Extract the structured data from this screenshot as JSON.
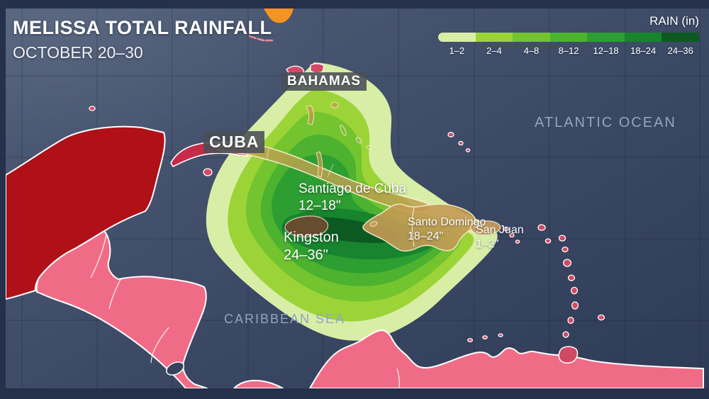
{
  "header": {
    "title": "MELISSA TOTAL RAINFALL",
    "subtitle": "OCTOBER 20–30"
  },
  "legend": {
    "title": "RAIN (in)",
    "items": [
      {
        "label": "1–2",
        "color": "#d8eea6"
      },
      {
        "label": "2–4",
        "color": "#9cd438"
      },
      {
        "label": "4–8",
        "color": "#73c42e"
      },
      {
        "label": "8–12",
        "color": "#4cb22f"
      },
      {
        "label": "12–18",
        "color": "#2d9e31"
      },
      {
        "label": "18–24",
        "color": "#18842e"
      },
      {
        "label": "24–36",
        "color": "#0c5a22"
      }
    ]
  },
  "map": {
    "region_labels": {
      "bahamas": "BAHAMAS",
      "cuba": "CUBA",
      "atlantic": "ATLANTIC OCEAN",
      "caribbean": "CARIBBEAN SEA"
    },
    "annotations": {
      "santiago": {
        "name": "Santiago de Cuba",
        "value": "12–18\""
      },
      "kingston": {
        "name": "Kingston",
        "value": "24–36\""
      },
      "santo_domingo": {
        "name": "Santo Domingo",
        "value": "18–24\""
      },
      "san_juan": {
        "name": "San Juan",
        "value": "1–2\""
      }
    },
    "colors": {
      "ocean_deep": "#2e3b56",
      "land_pink": "#f06c86",
      "land_dark_red": "#b01118",
      "island_crimson": "#d14a64",
      "florida_orange": "#f59422",
      "island_tan": "#c09a55"
    }
  }
}
